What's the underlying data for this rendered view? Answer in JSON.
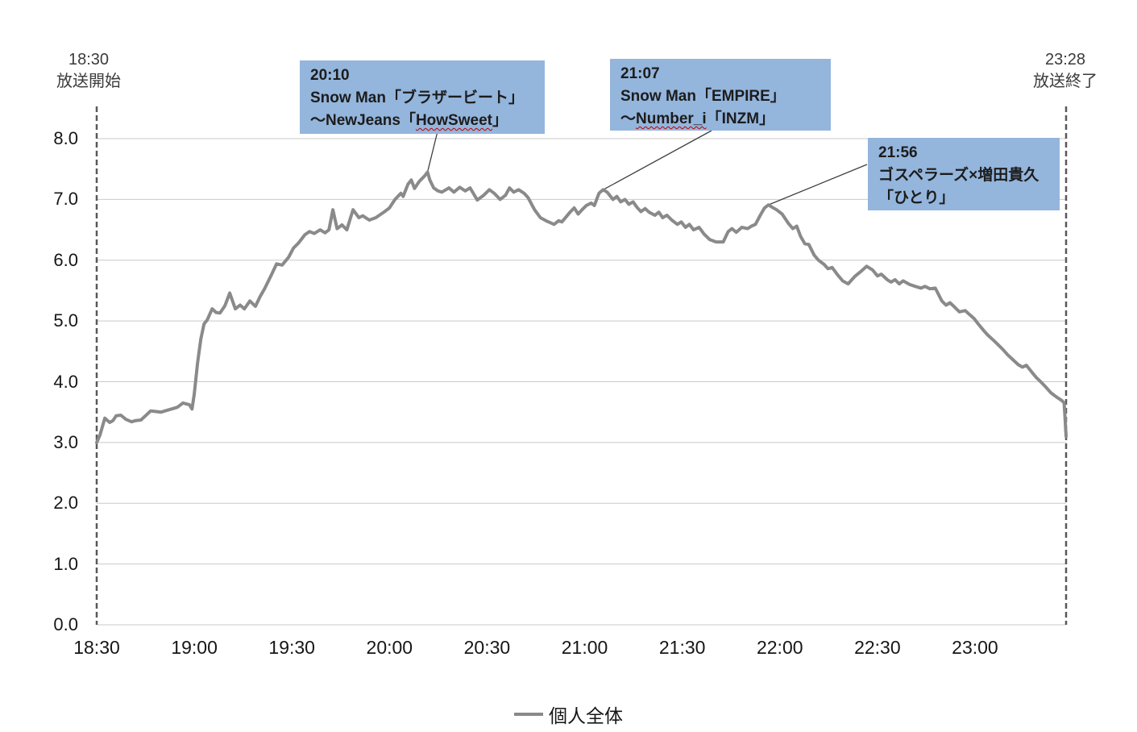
{
  "header": {
    "broadcast_start_time": "18:30",
    "broadcast_start_label": "放送開始",
    "broadcast_end_time": "23:28",
    "broadcast_end_label": "放送終了"
  },
  "legend": {
    "series_label": "個人全体"
  },
  "colors": {
    "series_line": "#8a8a8a",
    "gridline": "#c9c9c9",
    "boundary_dash": "#595959",
    "callout_fill": "#94b5dc",
    "callout_text": "#1c1c1c",
    "leader_line": "#404040",
    "misspell_underline": "#c00000"
  },
  "chart_data": {
    "type": "line",
    "title": "",
    "xlabel": "",
    "ylabel": "",
    "x_unit": "minutes since 18:30 broadcast start",
    "xlim": [
      0,
      298
    ],
    "ylim": [
      0,
      8
    ],
    "grid": "horizontal",
    "legend_position": "bottom-center",
    "y_ticks": [
      {
        "v": 0,
        "label": "0.0"
      },
      {
        "v": 1,
        "label": "1.0"
      },
      {
        "v": 2,
        "label": "2.0"
      },
      {
        "v": 3,
        "label": "3.0"
      },
      {
        "v": 4,
        "label": "4.0"
      },
      {
        "v": 5,
        "label": "5.0"
      },
      {
        "v": 6,
        "label": "6.0"
      },
      {
        "v": 7,
        "label": "7.0"
      },
      {
        "v": 8,
        "label": "8.0"
      }
    ],
    "x_ticks": [
      {
        "t": 0,
        "label": "18:30"
      },
      {
        "t": 30,
        "label": "19:00"
      },
      {
        "t": 60,
        "label": "19:30"
      },
      {
        "t": 90,
        "label": "20:00"
      },
      {
        "t": 120,
        "label": "20:30"
      },
      {
        "t": 150,
        "label": "21:00"
      },
      {
        "t": 180,
        "label": "21:30"
      },
      {
        "t": 210,
        "label": "22:00"
      },
      {
        "t": 240,
        "label": "22:30"
      },
      {
        "t": 270,
        "label": "23:00"
      }
    ],
    "boundaries": [
      {
        "t": 0,
        "label": "18:30 放送開始"
      },
      {
        "t": 298,
        "label": "23:28 放送終了"
      }
    ],
    "annotations": [
      {
        "time": "20:10",
        "line2": "Snow Man「ブラザービート」",
        "line3_prefix": "〜NewJeans「",
        "line3_misspelled": "HowSweet",
        "line3_suffix": "」",
        "anchor_t": 101.7,
        "anchor_v": 7.45
      },
      {
        "time": "21:07",
        "line2": "Snow Man「EMPIRE」",
        "line3_prefix": "〜",
        "line3_misspelled": "Number_i",
        "line3_suffix": "「INZM」",
        "anchor_t": 155.7,
        "anchor_v": 7.16
      },
      {
        "time": "21:56",
        "line2": "ゴスペラーズ×増田貴久",
        "line3_prefix": "「ひとり」",
        "line3_misspelled": "",
        "line3_suffix": "",
        "anchor_t": 206.5,
        "anchor_v": 6.91
      }
    ],
    "series": [
      {
        "name": "個人全体",
        "color": "#8a8a8a",
        "points": [
          [
            0,
            3.0
          ],
          [
            1,
            3.12
          ],
          [
            2.5,
            3.4
          ],
          [
            4,
            3.33
          ],
          [
            5,
            3.36
          ],
          [
            6,
            3.44
          ],
          [
            7.4,
            3.45
          ],
          [
            9,
            3.38
          ],
          [
            10.7,
            3.34
          ],
          [
            12,
            3.36
          ],
          [
            13.6,
            3.37
          ],
          [
            15,
            3.44
          ],
          [
            16.6,
            3.52
          ],
          [
            18,
            3.51
          ],
          [
            19.8,
            3.5
          ],
          [
            21,
            3.52
          ],
          [
            22.3,
            3.54
          ],
          [
            24.8,
            3.58
          ],
          [
            26.5,
            3.65
          ],
          [
            28.5,
            3.62
          ],
          [
            29.3,
            3.55
          ],
          [
            30,
            3.8
          ],
          [
            31,
            4.3
          ],
          [
            32,
            4.7
          ],
          [
            33,
            4.95
          ],
          [
            34,
            5.02
          ],
          [
            35.5,
            5.2
          ],
          [
            36.7,
            5.14
          ],
          [
            37.9,
            5.13
          ],
          [
            39.4,
            5.25
          ],
          [
            40.9,
            5.46
          ],
          [
            42.6,
            5.2
          ],
          [
            44.1,
            5.26
          ],
          [
            45.4,
            5.2
          ],
          [
            47.1,
            5.33
          ],
          [
            48.8,
            5.24
          ],
          [
            50.2,
            5.4
          ],
          [
            51.6,
            5.53
          ],
          [
            53.8,
            5.77
          ],
          [
            55.3,
            5.94
          ],
          [
            57,
            5.92
          ],
          [
            59,
            6.05
          ],
          [
            60.5,
            6.2
          ],
          [
            62,
            6.28
          ],
          [
            64,
            6.42
          ],
          [
            65.4,
            6.47
          ],
          [
            66.9,
            6.44
          ],
          [
            68.7,
            6.5
          ],
          [
            70.2,
            6.45
          ],
          [
            71.4,
            6.5
          ],
          [
            72.6,
            6.83
          ],
          [
            73.9,
            6.52
          ],
          [
            75.4,
            6.58
          ],
          [
            76.9,
            6.5
          ],
          [
            78.8,
            6.83
          ],
          [
            80.6,
            6.7
          ],
          [
            81.8,
            6.73
          ],
          [
            83.8,
            6.66
          ],
          [
            85.8,
            6.7
          ],
          [
            88.5,
            6.8
          ],
          [
            90,
            6.86
          ],
          [
            91.7,
            7.0
          ],
          [
            93.5,
            7.1
          ],
          [
            94.2,
            7.05
          ],
          [
            95.7,
            7.25
          ],
          [
            96.7,
            7.32
          ],
          [
            97.7,
            7.18
          ],
          [
            99.2,
            7.3
          ],
          [
            100.7,
            7.38
          ],
          [
            101.7,
            7.45
          ],
          [
            102.4,
            7.32
          ],
          [
            103.6,
            7.19
          ],
          [
            104.9,
            7.14
          ],
          [
            106.1,
            7.12
          ],
          [
            108.3,
            7.19
          ],
          [
            109.8,
            7.12
          ],
          [
            111.6,
            7.2
          ],
          [
            113.3,
            7.14
          ],
          [
            114.8,
            7.19
          ],
          [
            117,
            6.99
          ],
          [
            119,
            7.07
          ],
          [
            120.7,
            7.16
          ],
          [
            122.2,
            7.1
          ],
          [
            124,
            7.0
          ],
          [
            125.7,
            7.07
          ],
          [
            126.9,
            7.19
          ],
          [
            128.2,
            7.12
          ],
          [
            129.7,
            7.16
          ],
          [
            131.4,
            7.1
          ],
          [
            132.6,
            7.03
          ],
          [
            134.6,
            6.83
          ],
          [
            136.4,
            6.7
          ],
          [
            138.1,
            6.65
          ],
          [
            140.6,
            6.59
          ],
          [
            142,
            6.65
          ],
          [
            143,
            6.63
          ],
          [
            145.5,
            6.79
          ],
          [
            146.8,
            6.86
          ],
          [
            148,
            6.76
          ],
          [
            149.2,
            6.83
          ],
          [
            150.5,
            6.9
          ],
          [
            152,
            6.94
          ],
          [
            153,
            6.9
          ],
          [
            154.4,
            7.1
          ],
          [
            155.7,
            7.16
          ],
          [
            156.9,
            7.12
          ],
          [
            158.7,
            7.0
          ],
          [
            159.9,
            7.05
          ],
          [
            161.1,
            6.96
          ],
          [
            162.4,
            7.0
          ],
          [
            163.6,
            6.92
          ],
          [
            164.9,
            6.96
          ],
          [
            166.1,
            6.87
          ],
          [
            167.3,
            6.8
          ],
          [
            168.6,
            6.85
          ],
          [
            169.8,
            6.79
          ],
          [
            171.6,
            6.74
          ],
          [
            172.8,
            6.79
          ],
          [
            174,
            6.7
          ],
          [
            175.3,
            6.74
          ],
          [
            176.8,
            6.66
          ],
          [
            178.5,
            6.59
          ],
          [
            179.7,
            6.63
          ],
          [
            181,
            6.54
          ],
          [
            182.2,
            6.59
          ],
          [
            183.5,
            6.5
          ],
          [
            185.2,
            6.54
          ],
          [
            186.7,
            6.43
          ],
          [
            188.4,
            6.34
          ],
          [
            190.4,
            6.3
          ],
          [
            192.6,
            6.3
          ],
          [
            194.1,
            6.47
          ],
          [
            195.3,
            6.52
          ],
          [
            196.6,
            6.46
          ],
          [
            198.3,
            6.54
          ],
          [
            200.1,
            6.52
          ],
          [
            201.3,
            6.56
          ],
          [
            202.5,
            6.59
          ],
          [
            204,
            6.74
          ],
          [
            205.3,
            6.86
          ],
          [
            206.5,
            6.91
          ],
          [
            207.7,
            6.87
          ],
          [
            209,
            6.83
          ],
          [
            210.7,
            6.76
          ],
          [
            212.7,
            6.6
          ],
          [
            214,
            6.52
          ],
          [
            215.2,
            6.56
          ],
          [
            216.4,
            6.39
          ],
          [
            217.7,
            6.27
          ],
          [
            218.9,
            6.26
          ],
          [
            220.6,
            6.08
          ],
          [
            221.9,
            6.0
          ],
          [
            223.6,
            5.93
          ],
          [
            224.8,
            5.86
          ],
          [
            226.1,
            5.88
          ],
          [
            227.6,
            5.77
          ],
          [
            229.3,
            5.66
          ],
          [
            231,
            5.61
          ],
          [
            233,
            5.73
          ],
          [
            234.8,
            5.81
          ],
          [
            236.7,
            5.9
          ],
          [
            238.5,
            5.84
          ],
          [
            240,
            5.74
          ],
          [
            241.2,
            5.77
          ],
          [
            243,
            5.68
          ],
          [
            244.2,
            5.64
          ],
          [
            245.4,
            5.68
          ],
          [
            246.7,
            5.61
          ],
          [
            247.9,
            5.66
          ],
          [
            249.9,
            5.6
          ],
          [
            251.6,
            5.57
          ],
          [
            253.4,
            5.54
          ],
          [
            254.6,
            5.57
          ],
          [
            256.1,
            5.53
          ],
          [
            257.8,
            5.54
          ],
          [
            259.8,
            5.33
          ],
          [
            261.1,
            5.26
          ],
          [
            262.3,
            5.3
          ],
          [
            263.5,
            5.24
          ],
          [
            265.2,
            5.15
          ],
          [
            267,
            5.17
          ],
          [
            268.2,
            5.11
          ],
          [
            269.7,
            5.04
          ],
          [
            271,
            4.95
          ],
          [
            272.7,
            4.84
          ],
          [
            273.9,
            4.77
          ],
          [
            275.7,
            4.68
          ],
          [
            276.9,
            4.62
          ],
          [
            278.4,
            4.54
          ],
          [
            280.1,
            4.44
          ],
          [
            281.9,
            4.35
          ],
          [
            283.3,
            4.28
          ],
          [
            284.6,
            4.24
          ],
          [
            285.8,
            4.27
          ],
          [
            287.6,
            4.15
          ],
          [
            288.8,
            4.07
          ],
          [
            290,
            4.01
          ],
          [
            291.8,
            3.91
          ],
          [
            293.3,
            3.82
          ],
          [
            295,
            3.75
          ],
          [
            296.7,
            3.69
          ],
          [
            297.4,
            3.65
          ],
          [
            298,
            3.1
          ]
        ]
      }
    ]
  }
}
